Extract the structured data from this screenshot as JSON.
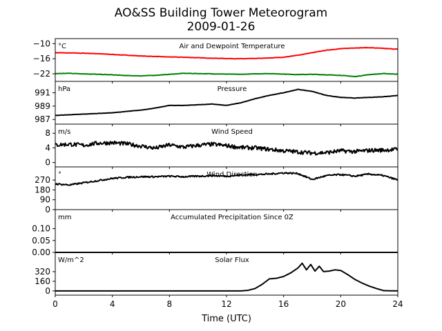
{
  "figure": {
    "title_line1": "AO&SS Building Tower Meteorogram",
    "title_line2": "2009-01-26",
    "xlabel": "Time (UTC)"
  },
  "chart_data": {
    "type": "line",
    "x_range": [
      0,
      24
    ],
    "x_ticks": [
      0,
      4,
      8,
      12,
      16,
      20,
      24
    ],
    "panels": [
      {
        "title": "Air and Dewpoint Temperature",
        "unit": "°C",
        "ylim": [
          -25,
          -8
        ],
        "yticks": [
          -10,
          -16,
          -22
        ],
        "ytick_labels": [
          "−10",
          "−16",
          "−22"
        ],
        "series": [
          {
            "color": "#ff0000",
            "x": [
              0,
              1,
              2,
              3,
              4,
              5,
              6,
              7,
              8,
              9,
              10,
              11,
              12,
              13,
              14,
              15,
              16,
              17,
              18,
              19,
              20,
              21,
              22,
              23,
              24
            ],
            "y": [
              -13.6,
              -13.7,
              -13.8,
              -14.0,
              -14.3,
              -14.6,
              -14.9,
              -15.1,
              -15.3,
              -15.4,
              -15.6,
              -15.8,
              -15.9,
              -16.0,
              -15.9,
              -15.7,
              -15.4,
              -14.6,
              -13.6,
              -12.6,
              -12.0,
              -11.7,
              -11.6,
              -11.9,
              -12.2
            ]
          },
          {
            "color": "#008000",
            "x": [
              0,
              1,
              2,
              3,
              4,
              5,
              6,
              7,
              8,
              9,
              10,
              11,
              12,
              13,
              14,
              15,
              16,
              17,
              18,
              19,
              20,
              21,
              22,
              23,
              24
            ],
            "y": [
              -21.9,
              -21.8,
              -22.0,
              -22.2,
              -22.4,
              -22.7,
              -22.8,
              -22.6,
              -22.2,
              -21.8,
              -21.9,
              -22.0,
              -22.1,
              -22.2,
              -22.0,
              -21.9,
              -22.1,
              -22.3,
              -22.2,
              -22.4,
              -22.6,
              -23.1,
              -22.3,
              -21.9,
              -22.1
            ]
          }
        ]
      },
      {
        "title": "Pressure",
        "unit": "hPa",
        "ylim": [
          986.3,
          992.7
        ],
        "yticks": [
          991,
          989,
          987
        ],
        "ytick_labels": [
          "991",
          "989",
          "987"
        ],
        "series": [
          {
            "color": "#000000",
            "x": [
              0,
              1,
              2,
              3,
              4,
              5,
              6,
              7,
              8,
              9,
              10,
              11,
              12,
              13,
              14,
              15,
              16,
              17,
              18,
              19,
              20,
              21,
              22,
              23,
              24
            ],
            "y": [
              987.6,
              987.7,
              987.8,
              987.9,
              988.0,
              988.2,
              988.4,
              988.7,
              989.1,
              989.1,
              989.2,
              989.3,
              989.1,
              989.5,
              990.1,
              990.6,
              991.0,
              991.5,
              991.2,
              990.6,
              990.3,
              990.2,
              990.3,
              990.4,
              990.6
            ]
          }
        ]
      },
      {
        "title": "Wind Speed",
        "unit": "m/s",
        "ylim": [
          -1.2,
          10.5
        ],
        "yticks": [
          8,
          4,
          0
        ],
        "ytick_labels": [
          "8",
          "4",
          "0"
        ],
        "series": [
          {
            "color": "#000000",
            "x": [
              0,
              1,
              2,
              3,
              4,
              5,
              6,
              7,
              8,
              9,
              10,
              11,
              12,
              13,
              14,
              15,
              16,
              17,
              18,
              19,
              20,
              21,
              22,
              23,
              24
            ],
            "y": [
              4.8,
              5.0,
              4.7,
              5.3,
              5.4,
              5.1,
              4.5,
              3.9,
              4.8,
              4.2,
              4.7,
              5.0,
              4.6,
              4.1,
              4.0,
              3.6,
              3.2,
              2.9,
              2.6,
              2.7,
              3.2,
              3.0,
              3.3,
              3.4,
              3.6
            ]
          }
        ]
      },
      {
        "title": "Wind Direction",
        "unit": "°",
        "ylim": [
          0,
          390
        ],
        "yticks": [
          270,
          180,
          90,
          0
        ],
        "ytick_labels": [
          "270",
          "180",
          "90",
          "0"
        ],
        "series": [
          {
            "color": "#000000",
            "x": [
              0,
              1,
              2,
              3,
              4,
              5,
              6,
              7,
              8,
              9,
              10,
              11,
              12,
              13,
              14,
              15,
              16,
              17,
              18,
              19,
              20,
              21,
              22,
              23,
              24
            ],
            "y": [
              235,
              225,
              245,
              265,
              285,
              295,
              300,
              300,
              305,
              300,
              305,
              310,
              305,
              315,
              320,
              325,
              335,
              330,
              275,
              310,
              320,
              305,
              325,
              310,
              270
            ]
          }
        ]
      },
      {
        "title": "Accumulated Precipitation Since 0Z",
        "unit": "mm",
        "ylim": [
          0,
          0.18
        ],
        "yticks": [
          0.1,
          0.05,
          0.0
        ],
        "ytick_labels": [
          "0.10",
          "0.05",
          "0.00"
        ],
        "series": [
          {
            "color": "#000000",
            "x": [
              0,
              24
            ],
            "y": [
              0,
              0
            ]
          }
        ]
      },
      {
        "title": "Solar Flux",
        "unit": "W/m^2",
        "ylim": [
          -70,
          640
        ],
        "yticks": [
          320,
          160,
          0
        ],
        "ytick_labels": [
          "320",
          "160",
          "0"
        ],
        "series": [
          {
            "color": "#000000",
            "x": [
              0,
              13,
              13.5,
              14,
              14.5,
              15,
              15.5,
              16,
              16.5,
              17,
              17.3,
              17.6,
              17.9,
              18.2,
              18.5,
              18.8,
              19.2,
              19.6,
              20,
              20.5,
              21,
              21.5,
              22,
              22.5,
              23,
              24
            ],
            "y": [
              0,
              0,
              10,
              40,
              110,
              200,
              210,
              240,
              300,
              380,
              460,
              350,
              440,
              330,
              410,
              320,
              330,
              350,
              340,
              270,
              190,
              130,
              80,
              40,
              5,
              0
            ]
          }
        ]
      }
    ]
  }
}
